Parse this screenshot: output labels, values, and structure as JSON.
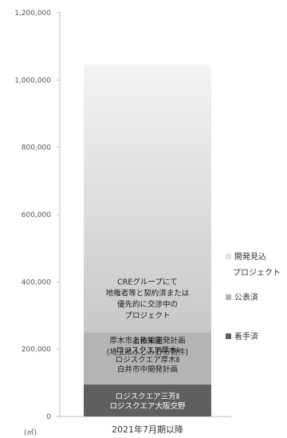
{
  "chart_data": {
    "type": "bar",
    "stacked": true,
    "categories": [
      "2021年7月期以降"
    ],
    "unit_label": "(㎡)",
    "ylim": [
      0,
      1200000
    ],
    "y_ticks": [
      "0",
      "200,000",
      "400,000",
      "600,000",
      "800,000",
      "1,000,000",
      "1,200,000"
    ],
    "y_tick_values": [
      0,
      200000,
      400000,
      600000,
      800000,
      1000000,
      1200000
    ],
    "grid": false,
    "legend_position": "right",
    "series": [
      {
        "name": "着手済",
        "values": [
          95000
        ],
        "color": "#5f5f5f",
        "labels": [
          "ロジスクエア三芳Ⅱ",
          "ロジスクエア大阪交野"
        ]
      },
      {
        "name": "公表済",
        "values": [
          155000
        ],
        "color": "#b4b4b4",
        "labels": [
          "厚木市上依知開発計画",
          "ロジスクエア厚木Ⅰ",
          "ロジスクエア厚木Ⅱ",
          "白井市中開発計画",
          "名称未定",
          "(埼玉県ふじみ野市物件)"
        ]
      },
      {
        "name": "開発見込プロジェクト",
        "values": [
          795000
        ],
        "color_bottom": "#c8c8c8",
        "color_top": "#f4f4f4",
        "labels": [
          "CREグループにて",
          "地権者等と契約済または",
          "優先的に交渉中の",
          "プロジェクト"
        ]
      }
    ],
    "legend": [
      {
        "marker": "■",
        "lines": [
          "開発見込",
          "プロジェクト"
        ],
        "color": "#e0e0e0"
      },
      {
        "marker": "■",
        "lines": [
          "公表済"
        ],
        "color": "#b4b4b4"
      },
      {
        "marker": "■",
        "lines": [
          "着手済"
        ],
        "color": "#5f5f5f"
      }
    ]
  }
}
